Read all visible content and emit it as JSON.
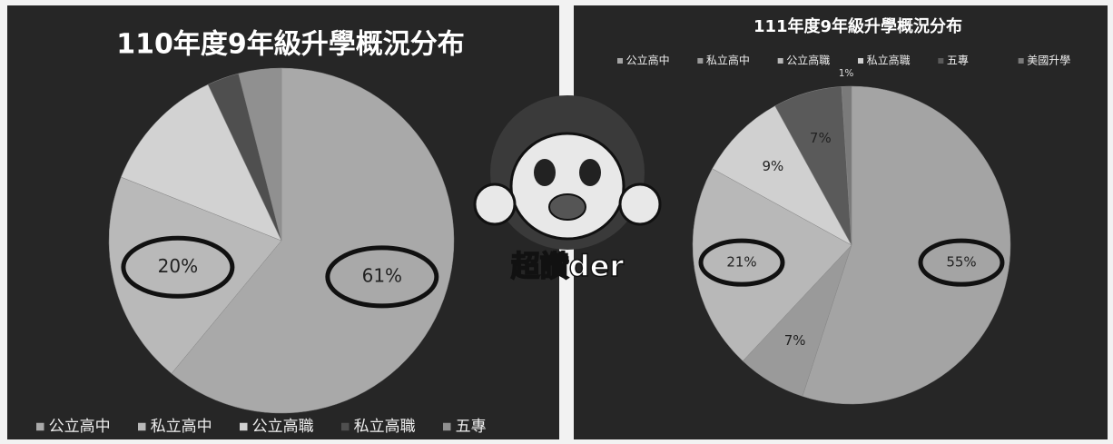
{
  "chart_data": [
    {
      "type": "pie",
      "title": "110年度9年級升學概況分布",
      "legend": "bottom",
      "categories": [
        "公立高中",
        "私立高中",
        "公立高職",
        "私立高職",
        "五專"
      ],
      "values": [
        61,
        20,
        12,
        3,
        4
      ],
      "value_labels": [
        "61%",
        "20%",
        null,
        null,
        null
      ],
      "colors": [
        "#a9a9a9",
        "#b9b9b9",
        "#d2d2d2",
        "#4f4f4f",
        "#909090"
      ]
    },
    {
      "type": "pie",
      "title": "111年度9年級升學概況分布",
      "legend": "top",
      "categories": [
        "公立高中",
        "私立高中",
        "公立高職",
        "私立高職",
        "五專",
        "美國升學"
      ],
      "values": [
        55,
        7,
        21,
        9,
        7,
        1
      ],
      "value_labels": [
        "55%",
        "7%",
        "21%",
        "9%",
        "7%",
        "1%"
      ],
      "colors": [
        "#a4a4a4",
        "#9a9a9a",
        "#b8b8b8",
        "#d0d0d0",
        "#5a5a5a",
        "#7a7a7a"
      ]
    }
  ],
  "sticker_text": "超讚der"
}
